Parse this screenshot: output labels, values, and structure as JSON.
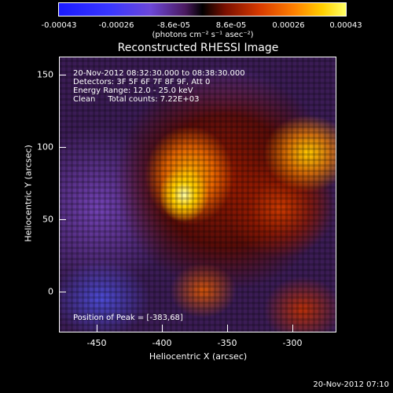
{
  "colorbar": {
    "ticks": [
      "-0.00043",
      "-0.00026",
      "-8.6e-05",
      "8.6e-05",
      "0.00026",
      "0.00043"
    ],
    "units": "(photons cm⁻² s⁻¹ asec⁻²)"
  },
  "title": "Reconstructed RHESSI Image",
  "info": {
    "line1": "20-Nov-2012 08:32:30.000 to 08:38:30.000",
    "line2": "Detectors: 3F 5F 6F 7F 8F 9F, Att 0",
    "line3": "Energy Range: 12.0 - 25.0 keV",
    "line4": "Clean     Total counts: 7.22E+03"
  },
  "peak": "Position of Peak = [-383,68]",
  "axes": {
    "xlabel": "Heliocentric X (arcsec)",
    "ylabel": "Heliocentric Y (arcsec)",
    "xticks": [
      "-450",
      "-400",
      "-350",
      "-300"
    ],
    "yticks": [
      "150",
      "100",
      "50",
      "0"
    ]
  },
  "timestamp": "20-Nov-2012 07:10"
}
